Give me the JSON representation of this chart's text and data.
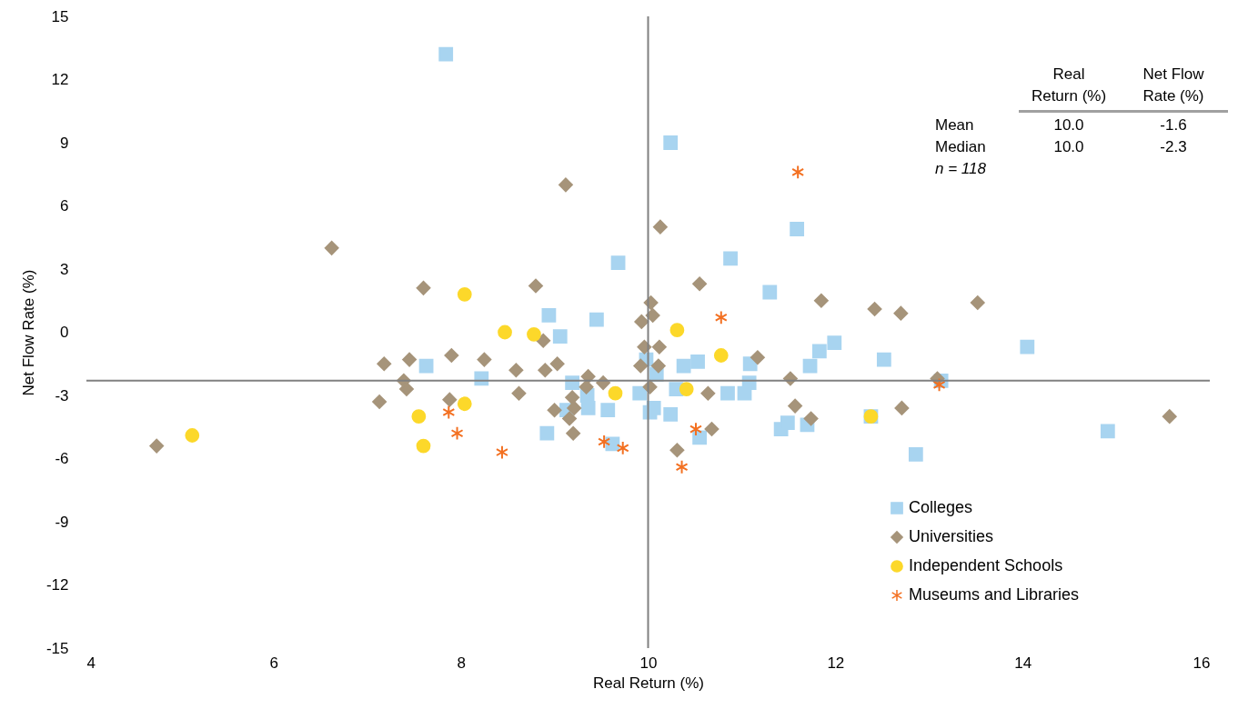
{
  "chart_data": {
    "type": "scatter",
    "xlabel": "Real Return (%)",
    "ylabel": "Net Flow Rate (%)",
    "xlim": [
      4,
      16
    ],
    "xticks": [
      4,
      6,
      8,
      10,
      12,
      14,
      16
    ],
    "ylim": [
      -15,
      15
    ],
    "yticks": [
      -15,
      -12,
      -9,
      -6,
      -3,
      0,
      3,
      6,
      9,
      12,
      15
    ],
    "legend": "bottom right",
    "ref_lines": [
      {
        "axis": "x",
        "value": 10,
        "color": "#808080"
      },
      {
        "axis": "y",
        "value": -2.3,
        "color": "#808080"
      }
    ],
    "annotations": [
      "Real Return (%)",
      "Net Flow Rate (%)",
      "Mean",
      "10.0",
      "-1.6",
      "Median",
      "10.0",
      "-2.3",
      "n = 118"
    ],
    "series": [
      {
        "name": "Colleges",
        "color": "#a8d4f0",
        "marker": "square",
        "x": [
          7.84,
          10.24,
          11.59,
          9.68,
          10.88,
          11.3,
          8.94,
          9.45,
          9.06,
          7.63,
          8.22,
          9.19,
          9.98,
          10.09,
          9.35,
          9.36,
          9.57,
          9.91,
          10.02,
          10.06,
          10.24,
          8.92,
          9.62,
          9.13,
          10.38,
          10.53,
          11.09,
          11.73,
          11.08,
          10.3,
          10.85,
          11.03,
          10.55,
          11.42,
          11.49,
          11.7,
          11.99,
          11.83,
          12.52,
          14.05,
          12.38,
          14.91,
          12.86,
          13.13
        ],
        "values": [
          13.2,
          9.0,
          4.9,
          3.3,
          3.5,
          1.9,
          0.8,
          0.6,
          -0.2,
          -1.6,
          -2.2,
          -2.4,
          -1.3,
          -2.0,
          -3.0,
          -3.6,
          -3.7,
          -2.9,
          -3.8,
          -3.6,
          -3.9,
          -4.8,
          -5.3,
          -3.7,
          -1.6,
          -1.4,
          -1.5,
          -1.6,
          -2.4,
          -2.7,
          -2.9,
          -2.9,
          -5.0,
          -4.6,
          -4.3,
          -4.4,
          -0.5,
          -0.9,
          -1.3,
          -0.7,
          -4.0,
          -4.7,
          -5.8,
          -2.3
        ]
      },
      {
        "name": "Universities",
        "color": "#a6947a",
        "marker": "diamond",
        "x": [
          4.75,
          6.62,
          7.6,
          8.8,
          9.12,
          10.13,
          10.55,
          11.85,
          12.42,
          12.7,
          13.52,
          15.57,
          7.18,
          7.45,
          7.9,
          8.25,
          7.39,
          7.42,
          7.13,
          7.88,
          8.88,
          8.59,
          8.9,
          9.03,
          8.62,
          9.36,
          9.34,
          9.52,
          9.19,
          9.21,
          9.0,
          9.16,
          9.2,
          10.03,
          10.05,
          9.93,
          9.96,
          10.12,
          9.92,
          10.11,
          10.02,
          11.17,
          11.52,
          10.64,
          11.57,
          10.68,
          10.31,
          11.74,
          12.71,
          13.09
        ],
        "values": [
          -5.4,
          4.0,
          2.1,
          2.2,
          7.0,
          5.0,
          2.3,
          1.5,
          1.1,
          0.9,
          1.4,
          -4.0,
          -1.5,
          -1.3,
          -1.1,
          -1.3,
          -2.3,
          -2.7,
          -3.3,
          -3.2,
          -0.4,
          -1.8,
          -1.8,
          -1.5,
          -2.9,
          -2.1,
          -2.6,
          -2.4,
          -3.1,
          -3.6,
          -3.7,
          -4.1,
          -4.8,
          1.4,
          0.8,
          0.5,
          -0.7,
          -0.7,
          -1.6,
          -1.6,
          -2.6,
          -1.2,
          -2.2,
          -2.9,
          -3.5,
          -4.6,
          -5.6,
          -4.1,
          -3.6,
          -2.2
        ]
      },
      {
        "name": "Independent Schools",
        "color": "#fcd82a",
        "marker": "circle",
        "x": [
          5.13,
          8.04,
          8.47,
          8.78,
          10.31,
          10.78,
          10.41,
          9.65,
          8.04,
          7.55,
          7.6,
          12.38
        ],
        "values": [
          -4.9,
          1.8,
          0.0,
          -0.1,
          0.1,
          -1.1,
          -2.7,
          -2.9,
          -3.4,
          -4.0,
          -5.4,
          -4.0
        ]
      },
      {
        "name": "Museums and Libraries",
        "color": "#f37021",
        "marker": "cross",
        "x": [
          11.6,
          10.78,
          13.11,
          7.87,
          7.96,
          8.44,
          9.53,
          9.73,
          10.51,
          10.36
        ],
        "values": [
          7.6,
          0.7,
          -2.5,
          -3.8,
          -4.8,
          -5.7,
          -5.2,
          -5.5,
          -4.6,
          -6.4
        ]
      }
    ]
  }
}
